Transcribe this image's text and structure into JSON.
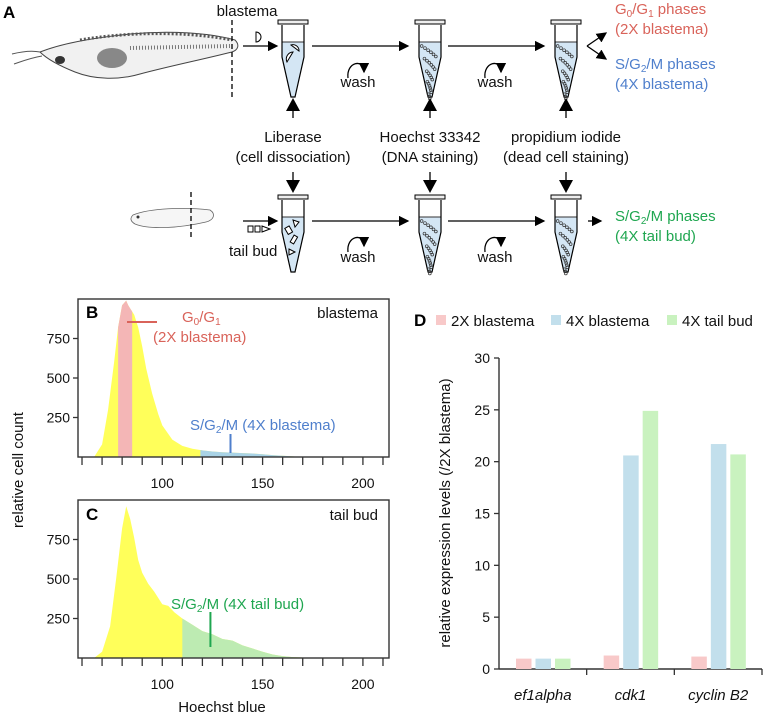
{
  "panel_a": {
    "letter": "A",
    "blastema_label": "blastema",
    "tail_bud_label": "tail bud",
    "wash_label": "wash",
    "reagents": [
      {
        "name": "Liberase",
        "purpose": "(cell dissociation)"
      },
      {
        "name": "Hoechst 33342",
        "purpose": "(DNA staining)"
      },
      {
        "name": "propidium iodide",
        "purpose": "(dead cell staining)"
      }
    ],
    "outputs": {
      "g0g1": {
        "parts": [
          "G",
          "0",
          "/G",
          "1",
          " phases"
        ],
        "sub": "(2X blastema)",
        "color": "#d9635a"
      },
      "sg2m_blastema": {
        "parts": [
          "S/G",
          "2",
          "/M phases"
        ],
        "sub": "(4X blastema)",
        "color": "#4f7fcc"
      },
      "sg2m_tailbud": {
        "parts": [
          "S/G",
          "2",
          "/M phases"
        ],
        "sub": "(4X tail bud)",
        "color": "#1fa650"
      }
    }
  },
  "chart_data": [
    {
      "panel": "B",
      "type": "area",
      "title": "blastema",
      "xlabel": "Hoechst blue",
      "ylabel": "relative cell count",
      "xlim": [
        58,
        213
      ],
      "ylim": [
        0,
        1000
      ],
      "xticks": [
        100,
        150,
        200
      ],
      "yticks": [
        250,
        500,
        750
      ],
      "x": [
        66,
        70,
        73,
        76,
        78,
        80,
        82,
        83,
        84,
        86,
        88,
        90,
        92,
        95,
        98,
        100,
        105,
        110,
        115,
        120,
        125,
        130,
        135,
        140,
        145,
        150,
        155,
        160,
        165,
        170
      ],
      "y": [
        0,
        80,
        300,
        600,
        820,
        960,
        990,
        960,
        940,
        900,
        820,
        700,
        560,
        400,
        270,
        200,
        110,
        70,
        52,
        42,
        35,
        30,
        28,
        25,
        22,
        18,
        12,
        8,
        4,
        0
      ],
      "regions": [
        {
          "label_parts": [
            "G",
            "0",
            "/G",
            "1"
          ],
          "label_sub": "(2X blastema)",
          "range": [
            78,
            85
          ],
          "color": "#f4b6b6",
          "marker_color": "#d9635a"
        },
        {
          "label_parts": [
            "S/G",
            "2",
            "/M (4X blastema)"
          ],
          "range": [
            119,
            170
          ],
          "color": "#a9d3e6",
          "marker_x": 134,
          "marker_color": "#4f7fcc"
        }
      ],
      "base_color": "#ffff5a"
    },
    {
      "panel": "C",
      "type": "area",
      "title": "tail bud",
      "xlabel": "Hoechst blue",
      "ylabel": "relative cell count",
      "xlim": [
        58,
        213
      ],
      "ylim": [
        0,
        1000
      ],
      "xticks": [
        100,
        150,
        200
      ],
      "yticks": [
        250,
        500,
        750
      ],
      "x": [
        66,
        70,
        74,
        77,
        80,
        82,
        84,
        86,
        88,
        90,
        93,
        96,
        100,
        103,
        106,
        110,
        115,
        120,
        125,
        130,
        135,
        140,
        145,
        150,
        155,
        160,
        165,
        170,
        180,
        200
      ],
      "y": [
        0,
        40,
        200,
        500,
        820,
        960,
        880,
        760,
        620,
        540,
        470,
        420,
        340,
        330,
        290,
        250,
        210,
        170,
        150,
        120,
        110,
        80,
        60,
        40,
        22,
        12,
        6,
        3,
        1,
        0
      ],
      "regions": [
        {
          "label_parts": [
            "S/G",
            "2",
            "/M (4X tail bud)"
          ],
          "range": [
            110,
            200
          ],
          "color": "#bdebb2",
          "marker_x": 124,
          "marker_color": "#1fa650"
        }
      ],
      "base_color": "#ffff5a"
    },
    {
      "panel": "D",
      "type": "bar",
      "ylabel": "relative expression levels (/2X blastema)",
      "ylim": [
        0,
        30
      ],
      "yticks": [
        0,
        5,
        10,
        15,
        20,
        25,
        30
      ],
      "categories": [
        "ef1alpha",
        "cdk1",
        "cyclin B2"
      ],
      "legend_position": "top",
      "series": [
        {
          "name": "2X blastema",
          "values": [
            1.0,
            1.3,
            1.2
          ],
          "color": "#f8c9c9"
        },
        {
          "name": "4X blastema",
          "values": [
            1.0,
            20.6,
            21.7
          ],
          "color": "#c2dfec"
        },
        {
          "name": "4X tail bud",
          "values": [
            1.0,
            24.9,
            20.7
          ],
          "color": "#c9f2bf"
        }
      ]
    }
  ]
}
